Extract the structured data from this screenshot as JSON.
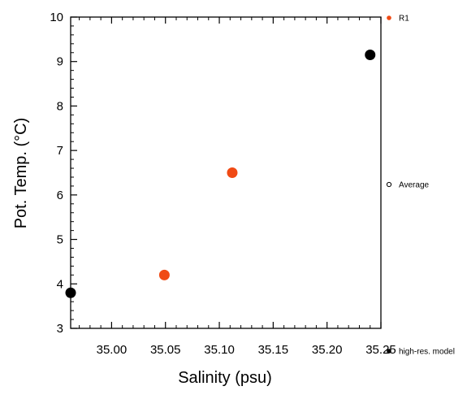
{
  "chart_data": {
    "type": "scatter",
    "xlabel": "Salinity (psu)",
    "ylabel": "Pot. Temp. (°C)",
    "xlim": [
      34.962,
      35.25
    ],
    "ylim": [
      3,
      10
    ],
    "x_ticks": [
      35.0,
      35.05,
      35.1,
      35.15,
      35.2,
      35.25
    ],
    "x_tick_labels": [
      "35.00",
      "35.05",
      "35.10",
      "35.15",
      "35.20",
      "35.25"
    ],
    "y_ticks": [
      3,
      4,
      5,
      6,
      7,
      8,
      9,
      10
    ],
    "y_tick_labels": [
      "3",
      "4",
      "5",
      "6",
      "7",
      "8",
      "9",
      "10"
    ],
    "grid": false,
    "legend_position": "right",
    "series": [
      {
        "name": "R1",
        "color": "#f04a14",
        "points": [
          {
            "x": 35.049,
            "y": 4.2
          },
          {
            "x": 35.112,
            "y": 6.5
          }
        ]
      },
      {
        "name": "high-res. model",
        "color": "#000000",
        "points": [
          {
            "x": 34.962,
            "y": 3.8
          },
          {
            "x": 35.24,
            "y": 9.15
          }
        ]
      }
    ],
    "legend": [
      {
        "label": "R1",
        "marker": "filled-dot",
        "color": "#f04a14"
      },
      {
        "label": "Average",
        "marker": "hollow-dot",
        "color": "#000000"
      },
      {
        "label": "high-res. model",
        "marker": "filled-dot",
        "color": "#000000"
      }
    ]
  }
}
